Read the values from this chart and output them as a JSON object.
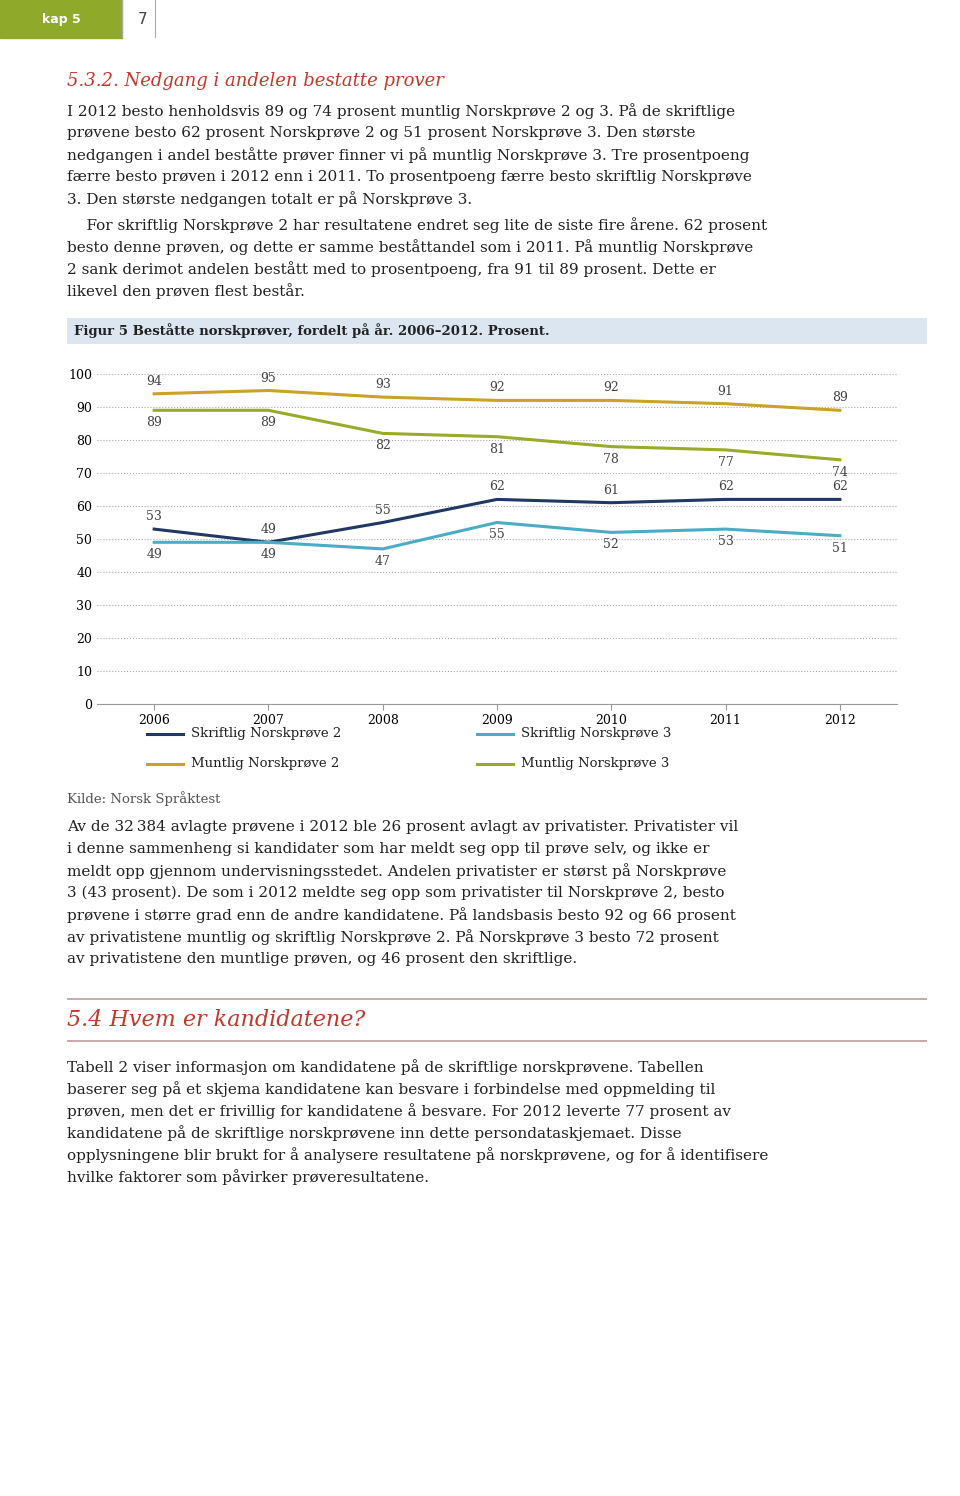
{
  "years": [
    2006,
    2007,
    2008,
    2009,
    2010,
    2011,
    2012
  ],
  "skriftlig_np2": [
    53,
    49,
    55,
    62,
    61,
    62,
    62
  ],
  "skriftlig_np3": [
    49,
    49,
    47,
    55,
    52,
    53,
    51
  ],
  "muntlig_np2": [
    94,
    95,
    93,
    92,
    92,
    91,
    89
  ],
  "muntlig_np3": [
    89,
    89,
    82,
    81,
    78,
    77,
    74
  ],
  "colors": {
    "skriftlig_np2": "#1f3864",
    "skriftlig_np3": "#4bacc6",
    "muntlig_np2": "#c9a227",
    "muntlig_np3": "#9aaa2a"
  },
  "figure_title": "Figur 5 Bestatte norskprover, fordelt pa ar. 2006–2012. Prosent.",
  "header_color": "#8faa2a",
  "header_kap": "kap 5",
  "header_num": "7",
  "section1_color": "#c0392b",
  "section1_title": "5.3.2. Nedgang i andelen bestatte prover",
  "body1_lines": [
    "I 2012 besto henholdsvis 89 og 74 prosent muntlig Norskprøve 2 og 3. På de skriftlige",
    "prøvene besto 62 prosent Norskprøve 2 og 51 prosent Norskprøve 3. Den største",
    "nedgangen i andel beståtte prøver finner vi på muntlig Norskprøve 3. Tre prosentpoeng",
    "færre besto prøven i 2012 enn i 2011. To prosentpoeng færre besto skriftlig Norskprøve",
    "3. Den største nedgangen totalt er på Norskprøve 3."
  ],
  "body2_lines": [
    "    For skriftlig Norskprøve 2 har resultatene endret seg lite de siste fire årene. 62 prosent",
    "besto denne prøven, og dette er samme beståttandel som i 2011. På muntlig Norskprøve",
    "2 sank derimot andelen bestått med to prosentpoeng, fra 91 til 89 prosent. Dette er",
    "likevel den prøven flest består."
  ],
  "fig_title_text": "Figur 5 Beståtte norskprøver, fordelt på år. 2006–2012. Prosent.",
  "fig_title_bg": "#dce6f1",
  "kilde_text": "Kilde: Norsk Språktest",
  "section2_title": "5.4 Hvem er kandidatene?",
  "body3_lines": [
    "Tabell 2 viser informasjon om kandidatene på de skriftlige norskprøvene. Tabellen",
    "baserer seg på et skjema kandidatene kan besvare i forbindelse med oppmelding til",
    "prøven, men det er frivillig for kandidatene å besvare. For 2012 leverte 77 prosent av",
    "kandidatene på de skriftlige norskprøvene inn dette persondataskjemaet. Disse",
    "opplysningene blir brukt for å analysere resultatene på norskprøvene, og for å identifisere",
    "hvilke faktorer som påvirker prøveresultatene."
  ],
  "ylim": [
    0,
    100
  ],
  "yticks": [
    0,
    10,
    20,
    30,
    40,
    50,
    60,
    70,
    80,
    90,
    100
  ],
  "grid_color": "#aaaaaa",
  "label_fontsize": 9,
  "axis_fontsize": 9,
  "linewidth": 2.2,
  "text_color": "#222222",
  "bg_color": "#ffffff"
}
